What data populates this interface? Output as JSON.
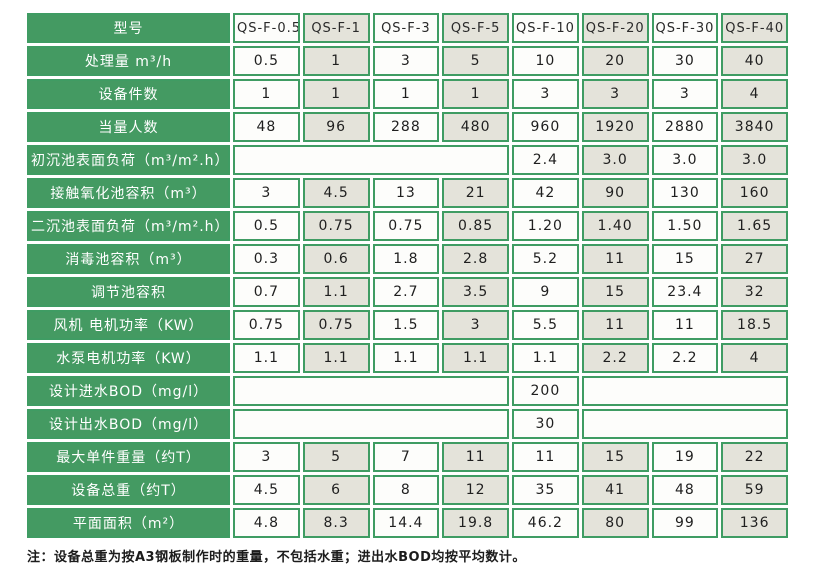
{
  "colors": {
    "green": "#449a62",
    "border_green": "#3f9c63",
    "cell_white": "#fdfdfb",
    "cell_beige": "#e4e3da",
    "text_dark": "#1f1f1f",
    "label_text": "#ffffff"
  },
  "table": {
    "header_label": "型号",
    "models": [
      "QS-F-0.5",
      "QS-F-1",
      "QS-F-3",
      "QS-F-5",
      "QS-F-10",
      "QS-F-20",
      "QS-F-30",
      "QS-F-40"
    ],
    "rows": [
      {
        "label": "处理量 m³/h",
        "values": [
          "0.5",
          "1",
          "3",
          "5",
          "10",
          "20",
          "30",
          "40"
        ]
      },
      {
        "label": "设备件数",
        "values": [
          "1",
          "1",
          "1",
          "1",
          "3",
          "3",
          "3",
          "4"
        ]
      },
      {
        "label": "当量人数",
        "values": [
          "48",
          "96",
          "288",
          "480",
          "960",
          "1920",
          "2880",
          "3840"
        ]
      },
      {
        "label": "初沉池表面负荷（m³/m².h）",
        "values": [
          {
            "span": 4,
            "text": ""
          },
          "2.4",
          "3.0",
          "3.0",
          "3.0"
        ]
      },
      {
        "label": "接触氧化池容积（m³）",
        "values": [
          "3",
          "4.5",
          "13",
          "21",
          "42",
          "90",
          "130",
          "160"
        ]
      },
      {
        "label": "二沉池表面负荷（m³/m².h）",
        "values": [
          "0.5",
          "0.75",
          "0.75",
          "0.85",
          "1.20",
          "1.40",
          "1.50",
          "1.65"
        ]
      },
      {
        "label": "消毒池容积（m³）",
        "values": [
          "0.3",
          "0.6",
          "1.8",
          "2.8",
          "5.2",
          "11",
          "15",
          "27"
        ]
      },
      {
        "label": "调节池容积",
        "values": [
          "0.7",
          "1.1",
          "2.7",
          "3.5",
          "9",
          "15",
          "23.4",
          "32"
        ]
      },
      {
        "label": "风机 电机功率（KW）",
        "values": [
          "0.75",
          "0.75",
          "1.5",
          "3",
          "5.5",
          "11",
          "11",
          "18.5"
        ]
      },
      {
        "label": "水泵电机功率（KW）",
        "values": [
          "1.1",
          "1.1",
          "1.1",
          "1.1",
          "1.1",
          "2.2",
          "2.2",
          "4"
        ]
      },
      {
        "label": "设计进水BOD（mg/l）",
        "values": [
          {
            "span": 4,
            "text": ""
          },
          "200",
          {
            "span": 3,
            "text": ""
          }
        ]
      },
      {
        "label": "设计出水BOD（mg/l）",
        "values": [
          {
            "span": 4,
            "text": ""
          },
          "30",
          {
            "span": 3,
            "text": ""
          }
        ]
      },
      {
        "label": "最大单件重量（约T）",
        "values": [
          "3",
          "5",
          "7",
          "11",
          "11",
          "15",
          "19",
          "22"
        ]
      },
      {
        "label": "设备总重（约T）",
        "values": [
          "4.5",
          "6",
          "8",
          "12",
          "35",
          "41",
          "48",
          "59"
        ]
      },
      {
        "label": "平面面积（m²）",
        "values": [
          "4.8",
          "8.3",
          "14.4",
          "19.8",
          "46.2",
          "80",
          "99",
          "136"
        ]
      }
    ]
  },
  "note": "注：设备总重为按A3钢板制作时的重量，不包括水重；进出水BOD均按平均数计。"
}
